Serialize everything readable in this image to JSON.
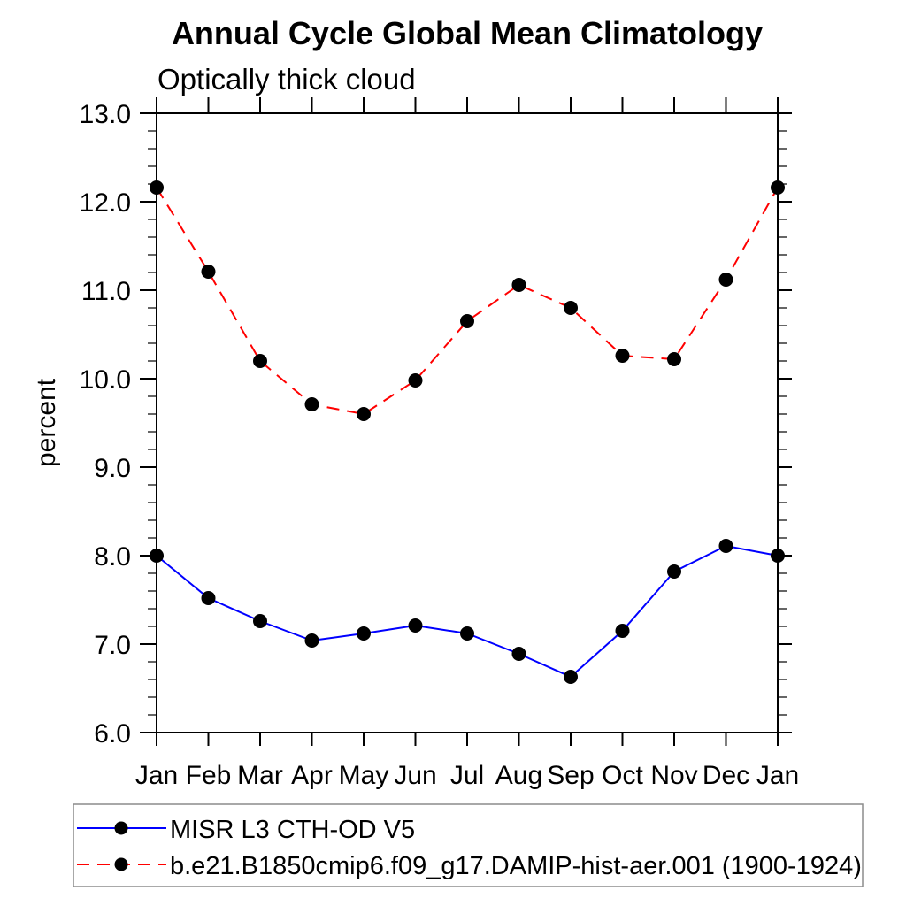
{
  "page": {
    "background": "#ffffff",
    "text_color": "#000000",
    "frame_color": "#000000",
    "legend_border_color": "#8c8c8c"
  },
  "chart_data": {
    "type": "line",
    "title": "Annual Cycle Global Mean Climatology",
    "subtitle": "Optically thick cloud",
    "ylabel": "percent",
    "xlabel": "",
    "categories": [
      "Jan",
      "Feb",
      "Mar",
      "Apr",
      "May",
      "Jun",
      "Jul",
      "Aug",
      "Sep",
      "Oct",
      "Nov",
      "Dec",
      "Jan"
    ],
    "series": [
      {
        "name": "MISR L3 CTH-OD V5",
        "color": "#0000ff",
        "style": "solid",
        "marker": "filled-circle",
        "marker_color": "#000000",
        "values": [
          8.0,
          7.52,
          7.26,
          7.04,
          7.12,
          7.21,
          7.12,
          6.89,
          6.63,
          7.15,
          7.82,
          8.11,
          8.0
        ]
      },
      {
        "name": "b.e21.B1850cmip6.f09_g17.DAMIP-hist-aer.001 (1900-1924)",
        "color": "#ff0000",
        "style": "dashed",
        "marker": "filled-circle",
        "marker_color": "#000000",
        "values": [
          12.16,
          11.21,
          10.2,
          9.71,
          9.6,
          9.98,
          10.65,
          11.06,
          10.8,
          10.26,
          10.22,
          11.12,
          12.16
        ]
      }
    ],
    "ylim": [
      6.0,
      13.0
    ],
    "ytick_values": [
      13.0,
      12.0,
      11.0,
      10.0,
      9.0,
      8.0,
      7.0,
      6.0
    ],
    "ytick_labels": [
      "13.0",
      "12.0",
      "11.0",
      "10.0",
      "9.0",
      "8.0",
      "7.0",
      "6.0"
    ],
    "ytick_minor_step": 0.2,
    "grid": false,
    "legend_position": "bottom"
  }
}
